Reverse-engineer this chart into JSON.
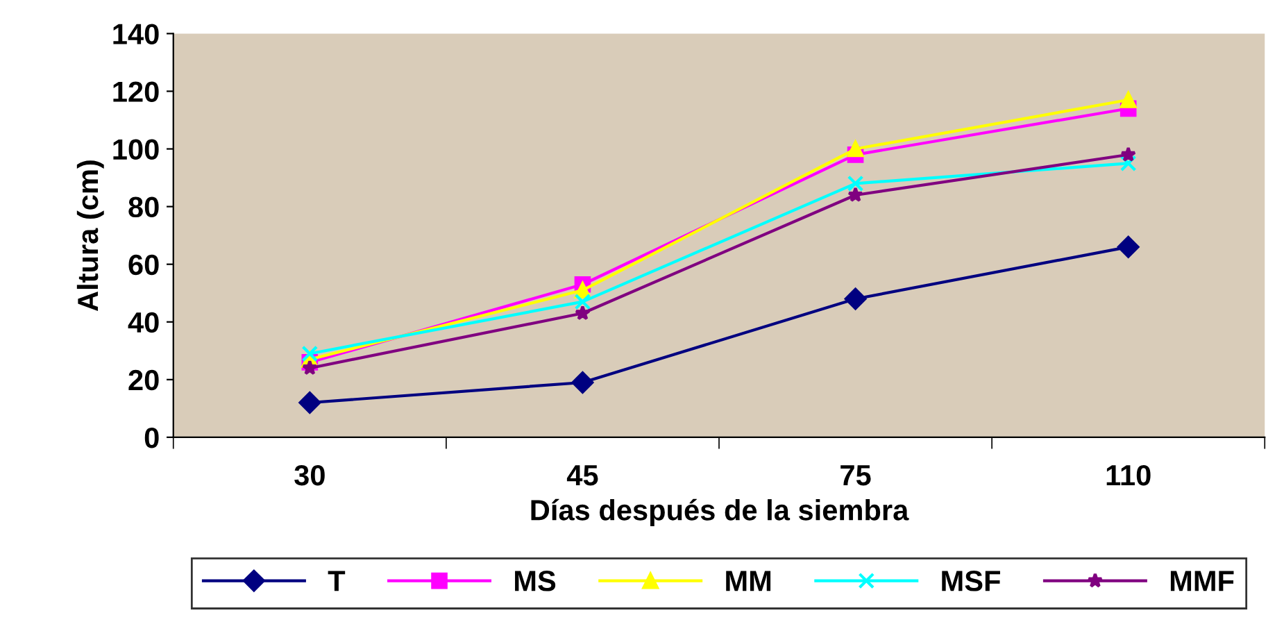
{
  "chart_data": {
    "type": "line",
    "xlabel": "Días después de la siembra",
    "ylabel": "Altura (cm)",
    "categories": [
      "30",
      "45",
      "75",
      "110"
    ],
    "ylim": [
      0,
      140
    ],
    "yticks": [
      0,
      20,
      40,
      60,
      80,
      100,
      120,
      140
    ],
    "grid": false,
    "legend": "bottom",
    "line_style": "solid",
    "series": [
      {
        "name": "T",
        "color": "#000080",
        "marker": "diamond",
        "values": [
          12,
          19,
          48,
          66
        ]
      },
      {
        "name": "MS",
        "color": "#ff00ff",
        "marker": "square",
        "values": [
          26,
          53,
          98,
          114
        ]
      },
      {
        "name": "MM",
        "color": "#ffff00",
        "marker": "triangle",
        "values": [
          27,
          51,
          100,
          117
        ]
      },
      {
        "name": "MSF",
        "color": "#00ffff",
        "marker": "cross",
        "values": [
          29,
          47,
          88,
          95
        ]
      },
      {
        "name": "MMF",
        "color": "#800080",
        "marker": "star",
        "values": [
          24,
          43,
          84,
          98
        ]
      }
    ]
  }
}
